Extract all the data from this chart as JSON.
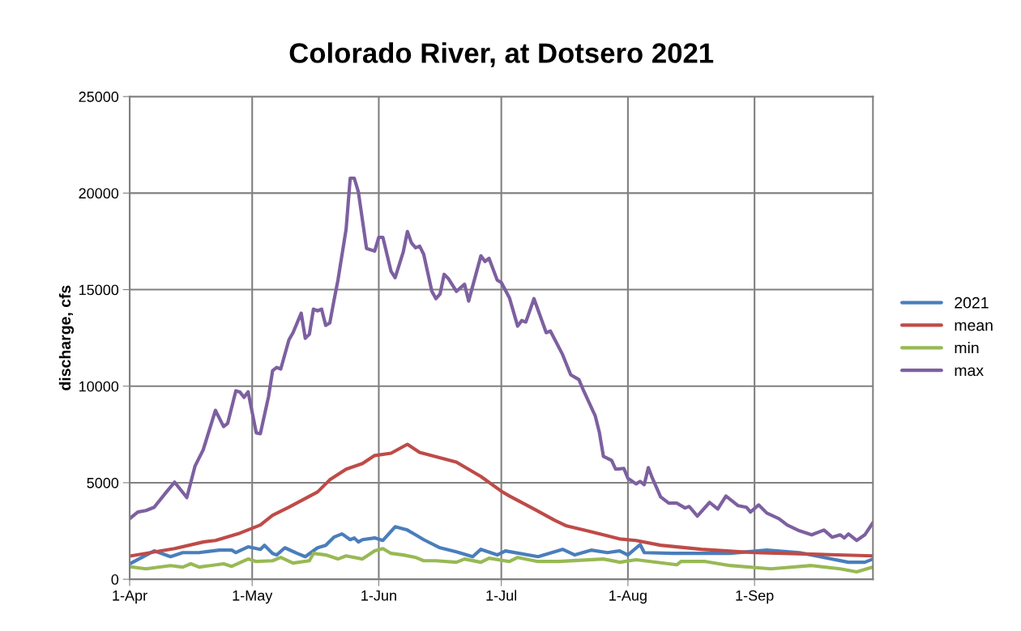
{
  "chart_data": {
    "type": "line",
    "title": "Colorado River, at Dotsero 2021",
    "ylabel": "discharge, cfs",
    "xlim": [
      "2021-04-01",
      "2021-09-30"
    ],
    "xticks": [
      {
        "value": "2021-04-01",
        "label": "1-Apr"
      },
      {
        "value": "2021-05-01",
        "label": "1-May"
      },
      {
        "value": "2021-06-01",
        "label": "1-Jun"
      },
      {
        "value": "2021-07-01",
        "label": "1-Jul"
      },
      {
        "value": "2021-08-01",
        "label": "1-Aug"
      },
      {
        "value": "2021-09-01",
        "label": "1-Sep"
      }
    ],
    "ylim": [
      0,
      25000
    ],
    "yticks": [
      0,
      5000,
      10000,
      15000,
      20000,
      25000
    ],
    "grid": true,
    "legend": "right",
    "marker": "none",
    "line_style": "solid",
    "series": [
      {
        "name": "2021",
        "color": "#4a7ebb",
        "x": [
          "2021-04-01",
          "2021-04-07",
          "2021-04-11",
          "2021-04-14",
          "2021-04-18",
          "2021-04-23",
          "2021-04-26",
          "2021-04-27",
          "2021-04-30",
          "2021-05-03",
          "2021-05-04",
          "2021-05-06",
          "2021-05-07",
          "2021-05-09",
          "2021-05-12",
          "2021-05-14",
          "2021-05-17",
          "2021-05-19",
          "2021-05-21",
          "2021-05-23",
          "2021-05-25",
          "2021-05-26",
          "2021-05-27",
          "2021-05-28",
          "2021-05-31",
          "2021-06-02",
          "2021-06-05",
          "2021-06-08",
          "2021-06-12",
          "2021-06-16",
          "2021-06-20",
          "2021-06-24",
          "2021-06-26",
          "2021-06-30",
          "2021-07-02",
          "2021-07-10",
          "2021-07-16",
          "2021-07-19",
          "2021-07-23",
          "2021-07-27",
          "2021-07-30",
          "2021-08-01",
          "2021-08-04",
          "2021-08-05",
          "2021-08-12",
          "2021-08-26",
          "2021-09-04",
          "2021-09-12",
          "2021-09-18",
          "2021-09-24",
          "2021-09-28",
          "2021-09-30"
        ],
        "values": [
          800,
          1470,
          1170,
          1380,
          1380,
          1510,
          1510,
          1380,
          1680,
          1550,
          1760,
          1340,
          1260,
          1630,
          1340,
          1170,
          1630,
          1760,
          2180,
          2350,
          2050,
          2140,
          1930,
          2050,
          2140,
          2010,
          2720,
          2550,
          2050,
          1630,
          1420,
          1170,
          1550,
          1260,
          1470,
          1170,
          1550,
          1260,
          1510,
          1380,
          1470,
          1260,
          1800,
          1380,
          1340,
          1340,
          1510,
          1380,
          1130,
          880,
          880,
          1050
        ]
      },
      {
        "name": "mean",
        "color": "#be4b48",
        "x": [
          "2021-04-01",
          "2021-04-12",
          "2021-04-19",
          "2021-04-22",
          "2021-04-28",
          "2021-05-03",
          "2021-05-06",
          "2021-05-10",
          "2021-05-17",
          "2021-05-20",
          "2021-05-24",
          "2021-05-28",
          "2021-05-31",
          "2021-06-04",
          "2021-06-08",
          "2021-06-11",
          "2021-06-20",
          "2021-06-26",
          "2021-07-01",
          "2021-07-03",
          "2021-07-09",
          "2021-07-14",
          "2021-07-17",
          "2021-07-22",
          "2021-07-26",
          "2021-07-30",
          "2021-08-03",
          "2021-08-09",
          "2021-08-19",
          "2021-09-01",
          "2021-09-15",
          "2021-09-30"
        ],
        "values": [
          1200,
          1590,
          1930,
          2010,
          2390,
          2810,
          3310,
          3730,
          4520,
          5150,
          5700,
          5990,
          6410,
          6530,
          6990,
          6570,
          6070,
          5320,
          4560,
          4310,
          3640,
          3060,
          2760,
          2510,
          2300,
          2090,
          2010,
          1760,
          1550,
          1380,
          1300,
          1210
        ]
      },
      {
        "name": "min",
        "color": "#98b954",
        "x": [
          "2021-04-01",
          "2021-04-05",
          "2021-04-11",
          "2021-04-14",
          "2021-04-16",
          "2021-04-18",
          "2021-04-24",
          "2021-04-26",
          "2021-04-30",
          "2021-05-02",
          "2021-05-06",
          "2021-05-08",
          "2021-05-11",
          "2021-05-15",
          "2021-05-16",
          "2021-05-19",
          "2021-05-22",
          "2021-05-24",
          "2021-05-28",
          "2021-05-31",
          "2021-06-02",
          "2021-06-04",
          "2021-06-07",
          "2021-06-10",
          "2021-06-12",
          "2021-06-15",
          "2021-06-20",
          "2021-06-22",
          "2021-06-26",
          "2021-06-28",
          "2021-07-03",
          "2021-07-05",
          "2021-07-10",
          "2021-07-15",
          "2021-07-26",
          "2021-07-30",
          "2021-08-03",
          "2021-08-13",
          "2021-08-14",
          "2021-08-20",
          "2021-08-26",
          "2021-09-05",
          "2021-09-15",
          "2021-09-22",
          "2021-09-26",
          "2021-09-30"
        ],
        "values": [
          650,
          540,
          710,
          630,
          800,
          630,
          800,
          670,
          1050,
          920,
          960,
          1130,
          840,
          960,
          1340,
          1260,
          1050,
          1210,
          1050,
          1470,
          1590,
          1340,
          1260,
          1130,
          960,
          960,
          880,
          1050,
          880,
          1090,
          920,
          1130,
          920,
          920,
          1050,
          880,
          1010,
          750,
          920,
          920,
          710,
          540,
          710,
          540,
          380,
          630
        ]
      },
      {
        "name": "max",
        "color": "#7d60a0",
        "x": [
          "2021-04-01",
          "2021-04-03",
          "2021-04-05",
          "2021-04-07",
          "2021-04-10",
          "2021-04-12",
          "2021-04-15",
          "2021-04-17",
          "2021-04-19",
          "2021-04-22",
          "2021-04-24",
          "2021-04-25",
          "2021-04-27",
          "2021-04-28",
          "2021-04-29",
          "2021-04-30",
          "2021-05-02",
          "2021-05-03",
          "2021-05-05",
          "2021-05-06",
          "2021-05-07",
          "2021-05-08",
          "2021-05-10",
          "2021-05-11",
          "2021-05-13",
          "2021-05-14",
          "2021-05-15",
          "2021-05-16",
          "2021-05-17",
          "2021-05-18",
          "2021-05-19",
          "2021-05-20",
          "2021-05-21",
          "2021-05-22",
          "2021-05-24",
          "2021-05-25",
          "2021-05-26",
          "2021-05-27",
          "2021-05-29",
          "2021-05-31",
          "2021-06-01",
          "2021-06-02",
          "2021-06-04",
          "2021-06-05",
          "2021-06-07",
          "2021-06-08",
          "2021-06-09",
          "2021-06-10",
          "2021-06-11",
          "2021-06-12",
          "2021-06-14",
          "2021-06-15",
          "2021-06-16",
          "2021-06-17",
          "2021-06-18",
          "2021-06-20",
          "2021-06-22",
          "2021-06-23",
          "2021-06-26",
          "2021-06-27",
          "2021-06-28",
          "2021-06-30",
          "2021-07-01",
          "2021-07-03",
          "2021-07-05",
          "2021-07-06",
          "2021-07-07",
          "2021-07-09",
          "2021-07-12",
          "2021-07-13",
          "2021-07-16",
          "2021-07-18",
          "2021-07-20",
          "2021-07-21",
          "2021-07-24",
          "2021-07-25",
          "2021-07-26",
          "2021-07-28",
          "2021-07-29",
          "2021-07-31",
          "2021-08-01",
          "2021-08-03",
          "2021-08-04",
          "2021-08-05",
          "2021-08-06",
          "2021-08-07",
          "2021-08-09",
          "2021-08-11",
          "2021-08-13",
          "2021-08-15",
          "2021-08-16",
          "2021-08-18",
          "2021-08-21",
          "2021-08-23",
          "2021-08-25",
          "2021-08-28",
          "2021-08-30",
          "2021-08-31",
          "2021-09-02",
          "2021-09-04",
          "2021-09-07",
          "2021-09-09",
          "2021-09-12",
          "2021-09-15",
          "2021-09-18",
          "2021-09-20",
          "2021-09-22",
          "2021-09-23",
          "2021-09-24",
          "2021-09-26",
          "2021-09-28",
          "2021-09-30"
        ],
        "values": [
          3140,
          3480,
          3560,
          3730,
          4520,
          5030,
          4230,
          5860,
          6700,
          8750,
          7910,
          8080,
          9760,
          9700,
          9420,
          9710,
          7580,
          7540,
          9460,
          10800,
          10970,
          10890,
          12400,
          12770,
          13780,
          12480,
          12690,
          13990,
          13900,
          13990,
          13150,
          13270,
          14410,
          15490,
          18130,
          20770,
          20770,
          20060,
          17130,
          17000,
          17710,
          17710,
          15950,
          15620,
          16960,
          18010,
          17420,
          17170,
          17250,
          16830,
          14910,
          14530,
          14780,
          15790,
          15580,
          14910,
          15280,
          14410,
          16750,
          16460,
          16620,
          15490,
          15370,
          14570,
          13110,
          13400,
          13320,
          14530,
          12770,
          12860,
          11640,
          10590,
          10340,
          9840,
          8460,
          7620,
          6370,
          6160,
          5700,
          5740,
          5230,
          4940,
          5070,
          4900,
          5780,
          5230,
          4270,
          3940,
          3940,
          3690,
          3770,
          3270,
          3980,
          3640,
          4310,
          3810,
          3730,
          3480,
          3850,
          3430,
          3140,
          2810,
          2510,
          2300,
          2550,
          2180,
          2300,
          2140,
          2350,
          2010,
          2300,
          2930
        ]
      }
    ]
  }
}
